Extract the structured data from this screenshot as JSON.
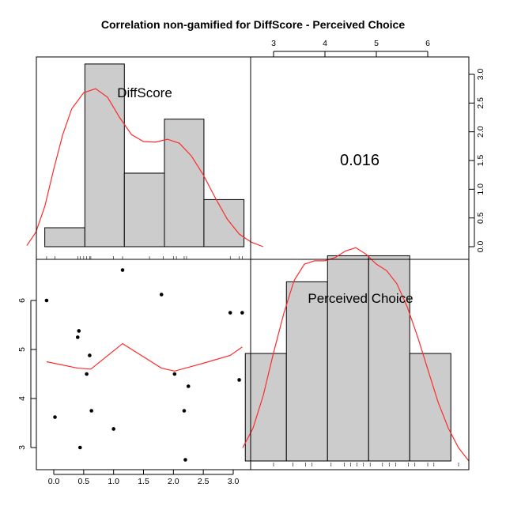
{
  "chart_data": {
    "type": "pairs",
    "title": "Correlation non-gamified for DiffScore - Perceived Choice",
    "variables": [
      "DiffScore",
      "Perceived Choice"
    ],
    "correlation_label": "0.016",
    "colors": {
      "bar_fill": "#cccccc",
      "density": "#ff2a2a",
      "axis": "#000000",
      "point": "#000000"
    },
    "x_ticks": {
      "diffscore": [
        "0.0",
        "0.5",
        "1.0",
        "1.5",
        "2.0",
        "2.5",
        "3.0"
      ],
      "perceived_choice": [
        "3",
        "4",
        "5",
        "6"
      ]
    },
    "y_ticks": {
      "diffscore": [
        "0.0",
        "0.5",
        "1.0",
        "1.5",
        "2.0",
        "2.5",
        "3.0"
      ],
      "perceived_choice": [
        "3",
        "4",
        "5",
        "6"
      ]
    },
    "histograms": {
      "diffscore": {
        "bins": [
          [
            -0.15,
            0.52
          ],
          [
            0.52,
            1.18
          ],
          [
            1.18,
            1.85
          ],
          [
            1.85,
            2.51
          ],
          [
            2.51,
            3.18
          ]
        ],
        "heights": [
          0.33,
          3.18,
          1.28,
          2.22,
          0.82
        ]
      },
      "perceived_choice": {
        "bins": [
          [
            2.45,
            3.25
          ],
          [
            3.25,
            4.05
          ],
          [
            4.05,
            4.85
          ],
          [
            4.85,
            5.65
          ],
          [
            5.65,
            6.45
          ]
        ],
        "heights": [
          0.33,
          0.55,
          0.63,
          0.63,
          0.33
        ]
      }
    },
    "density_curves": {
      "diffscore": [
        [
          -0.45,
          0.02
        ],
        [
          -0.3,
          0.25
        ],
        [
          -0.15,
          0.7
        ],
        [
          0,
          1.35
        ],
        [
          0.15,
          1.95
        ],
        [
          0.3,
          2.4
        ],
        [
          0.5,
          2.68
        ],
        [
          0.7,
          2.75
        ],
        [
          0.9,
          2.6
        ],
        [
          1.1,
          2.25
        ],
        [
          1.3,
          1.95
        ],
        [
          1.5,
          1.83
        ],
        [
          1.7,
          1.82
        ],
        [
          1.9,
          1.87
        ],
        [
          2.1,
          1.8
        ],
        [
          2.3,
          1.58
        ],
        [
          2.5,
          1.25
        ],
        [
          2.7,
          0.85
        ],
        [
          2.9,
          0.48
        ],
        [
          3.1,
          0.22
        ],
        [
          3.3,
          0.08
        ],
        [
          3.5,
          0.0
        ]
      ],
      "perceived_choice": [
        [
          2.4,
          0.04
        ],
        [
          2.6,
          0.1
        ],
        [
          2.8,
          0.2
        ],
        [
          3,
          0.33
        ],
        [
          3.2,
          0.45
        ],
        [
          3.4,
          0.55
        ],
        [
          3.6,
          0.6
        ],
        [
          3.8,
          0.61
        ],
        [
          4,
          0.61
        ],
        [
          4.2,
          0.62
        ],
        [
          4.4,
          0.64
        ],
        [
          4.6,
          0.65
        ],
        [
          4.8,
          0.63
        ],
        [
          5,
          0.6
        ],
        [
          5.2,
          0.58
        ],
        [
          5.4,
          0.54
        ],
        [
          5.6,
          0.47
        ],
        [
          5.8,
          0.38
        ],
        [
          6,
          0.28
        ],
        [
          6.2,
          0.18
        ],
        [
          6.4,
          0.1
        ],
        [
          6.6,
          0.04
        ],
        [
          6.8,
          0.0
        ]
      ]
    },
    "rug": {
      "diffscore": [
        -0.12,
        0.02,
        0.4,
        0.44,
        0.5,
        0.55,
        0.6,
        0.62,
        1.0,
        1.15,
        1.6,
        1.83,
        2.0,
        2.05,
        2.18,
        2.22,
        2.95,
        3.1,
        3.15
      ],
      "perceived_choice": [
        3.0,
        3.38,
        3.62,
        3.75,
        4.12,
        4.38,
        4.5,
        4.62,
        4.75,
        4.88,
        5.12,
        5.25,
        5.38,
        5.62,
        5.75,
        6.0,
        6.12,
        6.6
      ]
    },
    "scatter": {
      "x_variable": "DiffScore",
      "y_variable": "Perceived Choice",
      "points": [
        [
          -0.12,
          6.0
        ],
        [
          0.02,
          3.62
        ],
        [
          0.4,
          5.25
        ],
        [
          0.42,
          5.38
        ],
        [
          0.44,
          3.0
        ],
        [
          0.55,
          4.5
        ],
        [
          0.6,
          4.88
        ],
        [
          0.63,
          3.75
        ],
        [
          1.0,
          3.38
        ],
        [
          1.15,
          6.62
        ],
        [
          1.8,
          6.12
        ],
        [
          2.02,
          4.5
        ],
        [
          2.18,
          3.75
        ],
        [
          2.2,
          2.75
        ],
        [
          2.25,
          4.25
        ],
        [
          2.95,
          5.75
        ],
        [
          3.1,
          4.38
        ],
        [
          3.15,
          5.75
        ]
      ],
      "smoother": [
        [
          -0.12,
          4.75
        ],
        [
          0.4,
          4.62
        ],
        [
          0.62,
          4.6
        ],
        [
          1.15,
          5.12
        ],
        [
          1.8,
          4.62
        ],
        [
          2.02,
          4.56
        ],
        [
          2.5,
          4.72
        ],
        [
          2.95,
          4.88
        ],
        [
          3.15,
          5.05
        ]
      ]
    }
  }
}
